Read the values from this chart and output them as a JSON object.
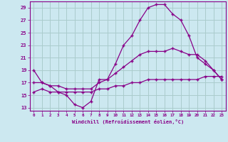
{
  "xlabel": "Windchill (Refroidissement éolien,°C)",
  "background_color": "#cce8f0",
  "grid_color": "#aacccc",
  "line_color": "#880088",
  "xlim": [
    -0.5,
    23.5
  ],
  "ylim": [
    12.5,
    30.0
  ],
  "yticks": [
    13,
    15,
    17,
    19,
    21,
    23,
    25,
    27,
    29
  ],
  "xticks": [
    0,
    1,
    2,
    3,
    4,
    5,
    6,
    7,
    8,
    9,
    10,
    11,
    12,
    13,
    14,
    15,
    16,
    17,
    18,
    19,
    20,
    21,
    22,
    23
  ],
  "line1_x": [
    0,
    1,
    2,
    3,
    4,
    5,
    6,
    7,
    8,
    9,
    10,
    11,
    12,
    13,
    14,
    15,
    16,
    17,
    18,
    19,
    20,
    21,
    22,
    23
  ],
  "line1_y": [
    19,
    17,
    16.5,
    15.5,
    15,
    13.5,
    13,
    14,
    17.5,
    17.5,
    20,
    23,
    24.5,
    27,
    29,
    29.5,
    29.5,
    28,
    27,
    24.5,
    21,
    20,
    19,
    17.5
  ],
  "line2_x": [
    0,
    1,
    2,
    3,
    4,
    5,
    6,
    7,
    8,
    9,
    10,
    11,
    12,
    13,
    14,
    15,
    16,
    17,
    18,
    19,
    20,
    21,
    22,
    23
  ],
  "line2_y": [
    17,
    17,
    16.5,
    16.5,
    16,
    16,
    16,
    16,
    17,
    17.5,
    18.5,
    19.5,
    20.5,
    21.5,
    22,
    22,
    22,
    22.5,
    22,
    21.5,
    21.5,
    20.5,
    19,
    17.5
  ],
  "line3_x": [
    0,
    1,
    2,
    3,
    4,
    5,
    6,
    7,
    8,
    9,
    10,
    11,
    12,
    13,
    14,
    15,
    16,
    17,
    18,
    19,
    20,
    21,
    22,
    23
  ],
  "line3_y": [
    15.5,
    16,
    15.5,
    15.5,
    15.5,
    15.5,
    15.5,
    15.5,
    16,
    16,
    16.5,
    16.5,
    17,
    17,
    17.5,
    17.5,
    17.5,
    17.5,
    17.5,
    17.5,
    17.5,
    18,
    18,
    18
  ]
}
